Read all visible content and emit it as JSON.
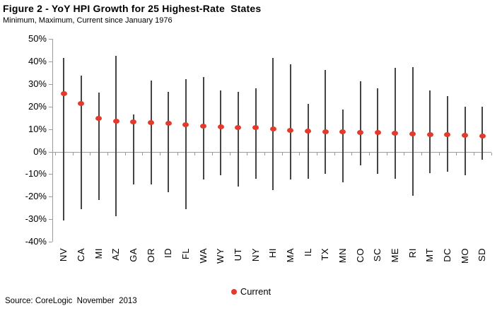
{
  "colors": {
    "current_dot": "#e5392b",
    "range_bar": "#454545",
    "axis": "#9b9b9b",
    "text": "#000000",
    "background": "#ffffff"
  },
  "chart_data": {
    "type": "range-dot",
    "title": "Figure 2 - YoY HPI Growth for 25 Highest-Rate  States",
    "subtitle": "Minimum, Maximum, Current since January 1976",
    "source": "Source: CoreLogic  November  2013",
    "legend": [
      {
        "name": "Current",
        "marker": "dot",
        "color": "#e5392b"
      }
    ],
    "legend_position": "bottom-center",
    "grid": "zero-line-only",
    "ylim": [
      -40,
      50
    ],
    "yticks": [
      50,
      40,
      30,
      20,
      10,
      0,
      -10,
      -20,
      -30,
      -40
    ],
    "ytick_format": "percent",
    "categories": [
      "NV",
      "CA",
      "MI",
      "AZ",
      "GA",
      "OR",
      "ID",
      "FL",
      "WA",
      "WY",
      "UT",
      "NY",
      "HI",
      "MA",
      "IL",
      "TX",
      "MN",
      "CO",
      "SC",
      "ME",
      "RI",
      "MT",
      "DC",
      "MO",
      "SD"
    ],
    "series": [
      {
        "name": "Maximum",
        "values": [
          41.5,
          33.5,
          26.0,
          42.5,
          16.5,
          31.5,
          26.5,
          32.0,
          33.0,
          27.0,
          26.5,
          28.0,
          41.5,
          38.5,
          21.0,
          36.0,
          18.5,
          31.0,
          28.0,
          37.0,
          37.5,
          27.0,
          24.5,
          20.0,
          20.0
        ]
      },
      {
        "name": "Minimum",
        "values": [
          -30.5,
          -25.5,
          -21.5,
          -28.5,
          -14.5,
          -14.5,
          -18.0,
          -25.5,
          -12.5,
          -10.5,
          -15.5,
          -12.0,
          -17.0,
          -12.5,
          -12.0,
          -10.0,
          -13.5,
          -6.0,
          -10.0,
          -12.0,
          -19.5,
          -9.5,
          -9.0,
          -10.5,
          -3.5
        ]
      },
      {
        "name": "Current",
        "values": [
          25.6,
          21.4,
          14.6,
          13.6,
          13.2,
          12.9,
          12.4,
          11.9,
          11.3,
          11.1,
          10.7,
          10.6,
          10.0,
          9.3,
          9.2,
          8.8,
          8.7,
          8.6,
          8.3,
          8.2,
          7.7,
          7.6,
          7.4,
          7.2,
          7.0
        ]
      }
    ]
  }
}
